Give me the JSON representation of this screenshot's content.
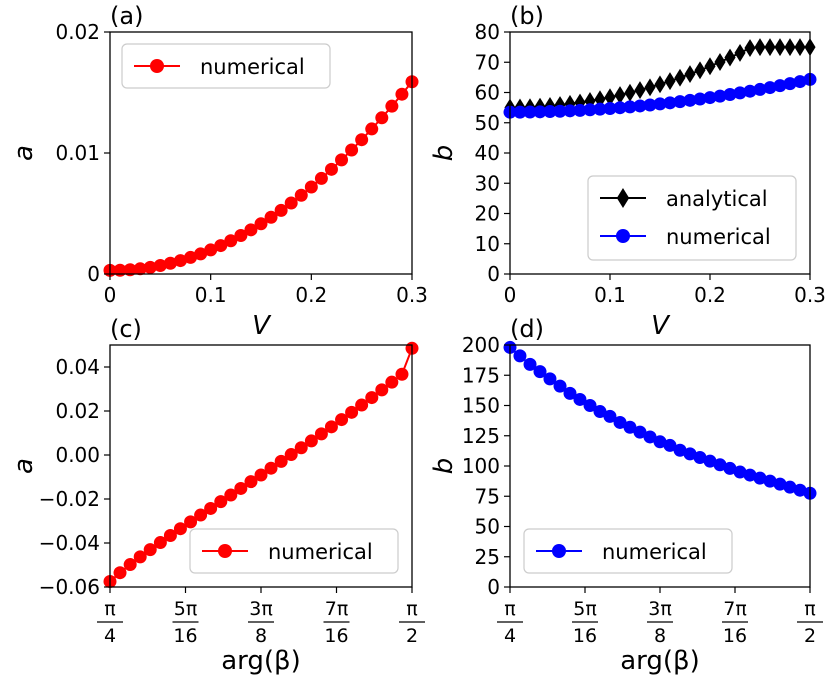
{
  "chart_data": [
    {
      "panel": "(a)",
      "type": "line",
      "xlabel": "V",
      "ylabel": "a",
      "xlim": [
        0,
        0.3
      ],
      "ylim": [
        0,
        0.02
      ],
      "xticks": [
        "0",
        "0.1",
        "0.2",
        "0.3"
      ],
      "yticks": [
        "0",
        "0.01",
        "0.02"
      ],
      "legend_position": "top-left",
      "series": [
        {
          "name": "numerical",
          "color": "#ff0000",
          "marker": "circle",
          "x": [
            0,
            0.01,
            0.02,
            0.03,
            0.04,
            0.05,
            0.06,
            0.07,
            0.08,
            0.09,
            0.1,
            0.11,
            0.12,
            0.13,
            0.14,
            0.15,
            0.16,
            0.17,
            0.18,
            0.19,
            0.2,
            0.21,
            0.22,
            0.23,
            0.24,
            0.25,
            0.26,
            0.27,
            0.28,
            0.29,
            0.3
          ],
          "y": [
            0.0003,
            0.00031,
            0.00035,
            0.00043,
            0.00055,
            0.0007,
            0.00089,
            0.00111,
            0.00137,
            0.00166,
            0.00199,
            0.00235,
            0.00275,
            0.00318,
            0.00365,
            0.00415,
            0.00469,
            0.00526,
            0.00587,
            0.00651,
            0.00719,
            0.0079,
            0.00865,
            0.00943,
            0.01025,
            0.0111,
            0.01199,
            0.01291,
            0.01387,
            0.01486,
            0.01589
          ]
        }
      ]
    },
    {
      "panel": "(b)",
      "type": "line",
      "xlabel": "V",
      "ylabel": "b",
      "xlim": [
        0,
        0.3
      ],
      "ylim": [
        0,
        80
      ],
      "xticks": [
        "0",
        "0.1",
        "0.2",
        "0.3"
      ],
      "yticks": [
        "0",
        "10",
        "20",
        "30",
        "40",
        "50",
        "60",
        "70",
        "80"
      ],
      "legend_position": "bottom-right",
      "series": [
        {
          "name": "analytical",
          "color": "#000000",
          "marker": "diamond",
          "x": [
            0,
            0.01,
            0.02,
            0.03,
            0.04,
            0.05,
            0.06,
            0.07,
            0.08,
            0.09,
            0.1,
            0.11,
            0.12,
            0.13,
            0.14,
            0.15,
            0.16,
            0.17,
            0.18,
            0.19,
            0.2,
            0.21,
            0.22,
            0.23,
            0.24,
            0.25,
            0.26,
            0.27,
            0.28,
            0.29,
            0.3
          ],
          "y": [
            55.0,
            55.04,
            55.14,
            55.31,
            55.55,
            55.86,
            56.24,
            56.68,
            57.2,
            57.78,
            58.43,
            59.15,
            59.93,
            60.79,
            61.71,
            62.7,
            63.76,
            64.89,
            66.08,
            67.35,
            68.68,
            70.08,
            71.55,
            73.09,
            74.7,
            75.0,
            75.0,
            75.0,
            75.0,
            75.0,
            75.0
          ]
        },
        {
          "name": "numerical",
          "color": "#0000ff",
          "marker": "circle",
          "x": [
            0,
            0.01,
            0.02,
            0.03,
            0.04,
            0.05,
            0.06,
            0.07,
            0.08,
            0.09,
            0.1,
            0.11,
            0.12,
            0.13,
            0.14,
            0.15,
            0.16,
            0.17,
            0.18,
            0.19,
            0.2,
            0.21,
            0.22,
            0.23,
            0.24,
            0.25,
            0.26,
            0.27,
            0.28,
            0.29,
            0.3
          ],
          "y": [
            53.5,
            53.51,
            53.55,
            53.61,
            53.7,
            53.81,
            53.94,
            54.1,
            54.28,
            54.49,
            54.72,
            54.97,
            55.25,
            55.55,
            55.87,
            56.22,
            56.59,
            56.99,
            57.41,
            57.85,
            58.32,
            58.81,
            59.33,
            59.87,
            60.43,
            61.02,
            61.63,
            62.27,
            62.93,
            63.61,
            64.32
          ]
        }
      ]
    },
    {
      "panel": "(c)",
      "type": "line",
      "xlabel": "arg(β)",
      "ylabel": "a",
      "xlim_pi_fraction": [
        0.25,
        0.5
      ],
      "ylim": [
        -0.06,
        0.05
      ],
      "xtick_fractions": [
        {
          "num": "π",
          "den": "4"
        },
        {
          "num": "5π",
          "den": "16"
        },
        {
          "num": "3π",
          "den": "8"
        },
        {
          "num": "7π",
          "den": "16"
        },
        {
          "num": "π",
          "den": "2"
        }
      ],
      "yticks": [
        "−0.06",
        "−0.04",
        "−0.02",
        "0.00",
        "0.02",
        "0.04"
      ],
      "legend_position": "bottom-right",
      "series": [
        {
          "name": "numerical",
          "color": "#ff0000",
          "marker": "circle",
          "x_pi_fraction": [
            0.25,
            0.2583,
            0.2667,
            0.275,
            0.2833,
            0.2917,
            0.3,
            0.3083,
            0.3167,
            0.325,
            0.3333,
            0.3417,
            0.35,
            0.3583,
            0.3667,
            0.375,
            0.3833,
            0.3917,
            0.4,
            0.4083,
            0.4167,
            0.425,
            0.4333,
            0.4417,
            0.45,
            0.4583,
            0.4667,
            0.475,
            0.4833,
            0.4917,
            0.5
          ],
          "y": [
            -0.0575,
            -0.0535,
            -0.0498,
            -0.0463,
            -0.043,
            -0.0398,
            -0.0366,
            -0.0335,
            -0.0304,
            -0.0273,
            -0.0243,
            -0.0212,
            -0.0182,
            -0.0152,
            -0.0121,
            -0.0091,
            -0.006,
            -0.0029,
            0.0002,
            0.0033,
            0.0064,
            0.0096,
            0.0128,
            0.0161,
            0.0194,
            0.0227,
            0.0261,
            0.0296,
            0.0331,
            0.0367,
            0.0485
          ]
        }
      ]
    },
    {
      "panel": "(d)",
      "type": "line",
      "xlabel": "arg(β)",
      "ylabel": "b",
      "xlim_pi_fraction": [
        0.25,
        0.5
      ],
      "ylim": [
        0,
        200
      ],
      "xtick_fractions": [
        {
          "num": "π",
          "den": "4"
        },
        {
          "num": "5π",
          "den": "16"
        },
        {
          "num": "3π",
          "den": "8"
        },
        {
          "num": "7π",
          "den": "16"
        },
        {
          "num": "π",
          "den": "2"
        }
      ],
      "yticks": [
        "0",
        "25",
        "50",
        "75",
        "100",
        "125",
        "150",
        "175",
        "200"
      ],
      "legend_position": "bottom-left",
      "series": [
        {
          "name": "numerical",
          "color": "#0000ff",
          "marker": "circle",
          "x_pi_fraction": [
            0.25,
            0.2583,
            0.2667,
            0.275,
            0.2833,
            0.2917,
            0.3,
            0.3083,
            0.3167,
            0.325,
            0.3333,
            0.3417,
            0.35,
            0.3583,
            0.3667,
            0.375,
            0.3833,
            0.3917,
            0.4,
            0.4083,
            0.4167,
            0.425,
            0.4333,
            0.4417,
            0.45,
            0.4583,
            0.4667,
            0.475,
            0.4833,
            0.4917,
            0.5
          ],
          "y": [
            198,
            191,
            184,
            178,
            172,
            166,
            160,
            155,
            150,
            145,
            141,
            136,
            132,
            128,
            124,
            120,
            117,
            113,
            110,
            107,
            104,
            101,
            98,
            95,
            92.5,
            90,
            87.5,
            85,
            82.5,
            80,
            77.5
          ]
        }
      ]
    }
  ]
}
